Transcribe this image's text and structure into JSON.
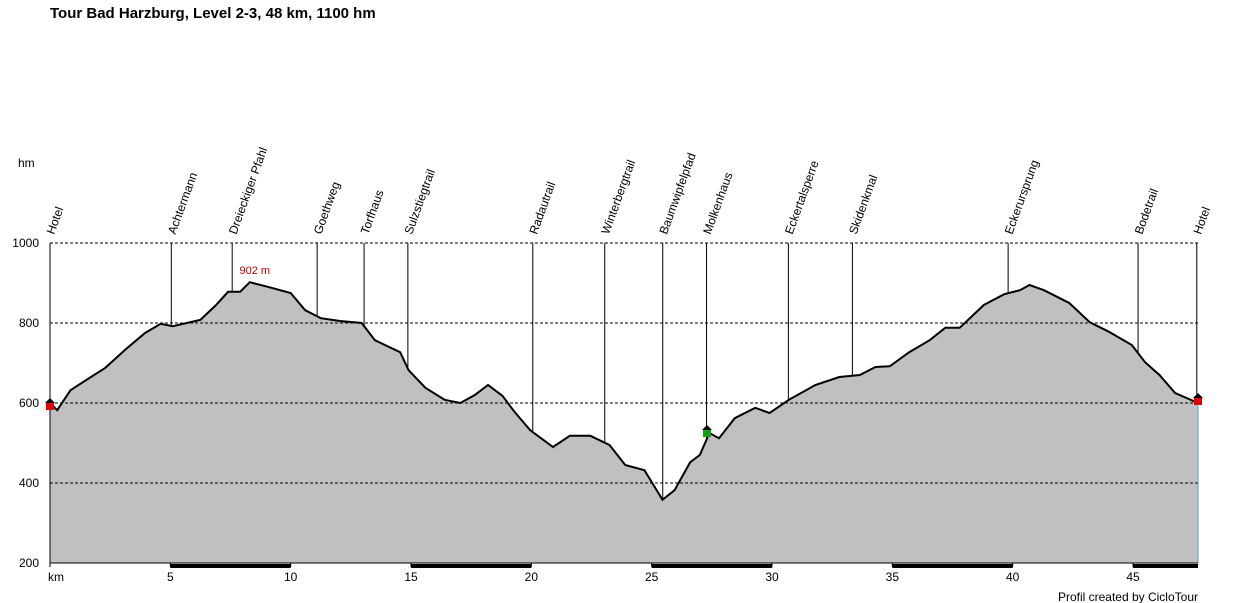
{
  "chart_data": {
    "type": "area",
    "title": "Tour Bad Harzburg, Level 2-3, 48 km, 1100 hm",
    "y_label": "hm",
    "footer": "Profil created by CicloTour",
    "annotation": {
      "text": "902 m",
      "x": 8.3,
      "value": 902
    },
    "color": "#c0c0c0",
    "line_color": "#000000",
    "grid": true,
    "xlim": [
      0,
      47.7
    ],
    "ylim": [
      200,
      1000
    ],
    "xticks": [
      {
        "value": 0,
        "label": "km"
      },
      5,
      10,
      15,
      20,
      25,
      30,
      35,
      40,
      45
    ],
    "yticks": [
      200,
      400,
      600,
      800,
      1000
    ],
    "waypoints": [
      {
        "name": "Hotel",
        "km": 0
      },
      {
        "name": "Achtermann",
        "km": 5.04
      },
      {
        "name": "Dreieckiger Pfahl",
        "km": 7.57
      },
      {
        "name": "Goethweg",
        "km": 11.1
      },
      {
        "name": "Torfhaus",
        "km": 13.05
      },
      {
        "name": "Sulzstiegtrail",
        "km": 14.87
      },
      {
        "name": "Radautrail",
        "km": 20.06
      },
      {
        "name": "Winterbergtrail",
        "km": 23.05
      },
      {
        "name": "Baumwipfelpfad",
        "km": 25.46
      },
      {
        "name": "Molkenhaus",
        "km": 27.28
      },
      {
        "name": "Eckertalsperre",
        "km": 30.68
      },
      {
        "name": "Skidenkmal",
        "km": 33.34
      },
      {
        "name": "Eckerursprung",
        "km": 39.81
      },
      {
        "name": "Bodetrail",
        "km": 45.21
      },
      {
        "name": "Hotel",
        "km": 47.65
      }
    ],
    "x": [
      0,
      0.3,
      0.85,
      1.7,
      2.3,
      3.1,
      3.95,
      4.6,
      5.1,
      6.25,
      6.9,
      7.4,
      7.9,
      8.3,
      8.95,
      10.0,
      10.6,
      11.25,
      12.05,
      12.95,
      13.5,
      14.55,
      14.9,
      15.6,
      16.4,
      17.05,
      17.65,
      18.2,
      18.8,
      19.3,
      19.95,
      20.9,
      21.6,
      22.45,
      23.25,
      23.9,
      24.7,
      25.45,
      25.95,
      26.6,
      27.0,
      27.4,
      27.8,
      28.45,
      29.3,
      29.9,
      30.7,
      31.8,
      32.8,
      33.65,
      34.3,
      34.9,
      35.7,
      36.55,
      37.2,
      37.8,
      38.8,
      39.65,
      40.3,
      40.7,
      41.3,
      42.35,
      43.2,
      44.0,
      44.95,
      45.5,
      46.1,
      46.75,
      47.7
    ],
    "values": [
      600,
      582,
      632,
      665,
      688,
      732,
      775,
      798,
      792,
      808,
      845,
      878,
      878,
      902,
      892,
      875,
      832,
      812,
      805,
      800,
      757,
      727,
      682,
      638,
      608,
      600,
      620,
      645,
      618,
      578,
      532,
      490,
      518,
      518,
      495,
      445,
      432,
      358,
      382,
      452,
      470,
      525,
      512,
      562,
      588,
      575,
      608,
      645,
      665,
      670,
      690,
      692,
      727,
      757,
      788,
      788,
      845,
      872,
      882,
      895,
      882,
      850,
      802,
      778,
      745,
      702,
      670,
      625,
      600
    ]
  }
}
